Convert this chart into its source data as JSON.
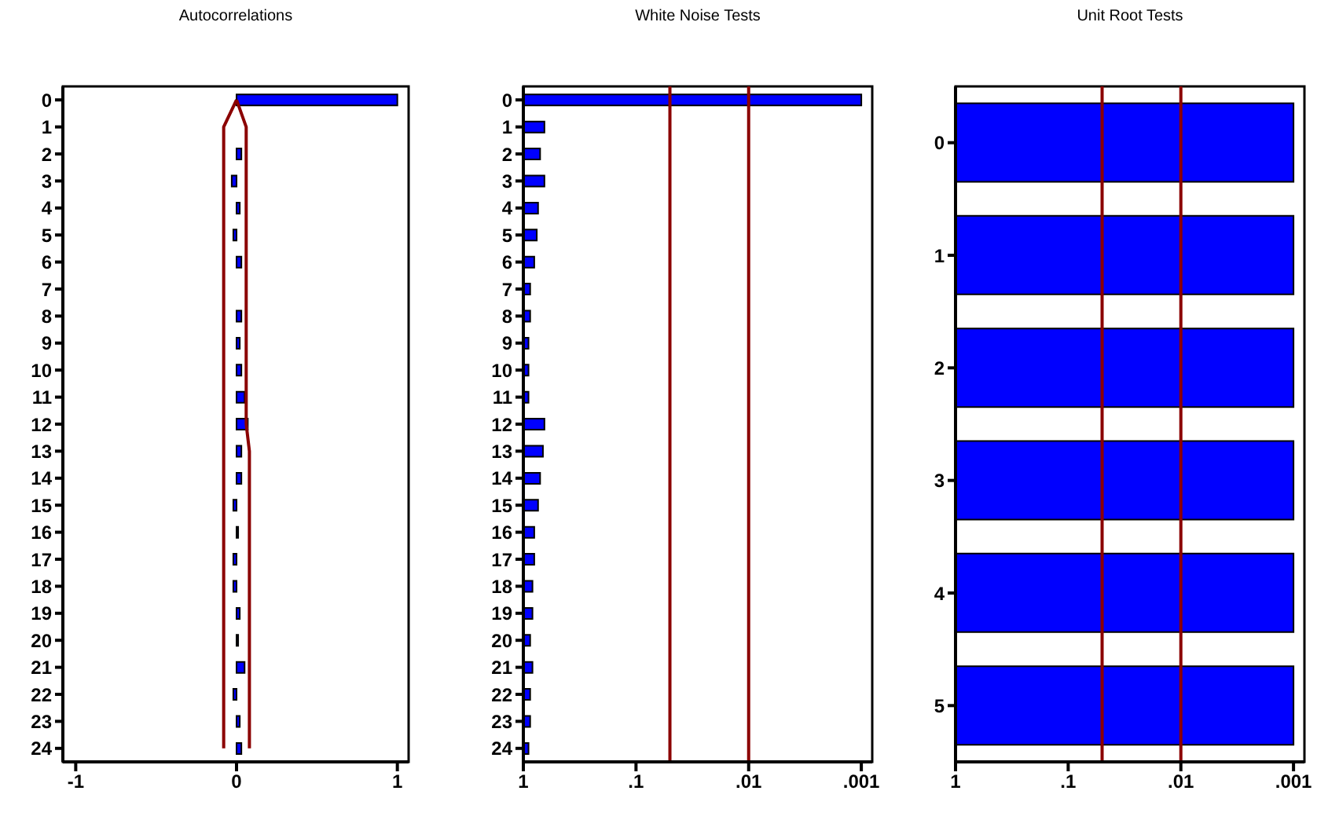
{
  "chart_data": [
    {
      "type": "bar",
      "title": "Autocorrelations",
      "orientation": "horizontal",
      "categories": [
        "0",
        "1",
        "2",
        "3",
        "4",
        "5",
        "6",
        "7",
        "8",
        "9",
        "10",
        "11",
        "12",
        "13",
        "14",
        "15",
        "16",
        "17",
        "18",
        "19",
        "20",
        "21",
        "22",
        "23",
        "24"
      ],
      "series": [
        {
          "color": "#0000ff",
          "values": [
            1,
            0,
            0.03,
            -0.03,
            0.02,
            -0.02,
            0.03,
            0,
            0.03,
            0.02,
            0.03,
            0.05,
            0.07,
            0.03,
            0.03,
            -0.02,
            0.01,
            -0.02,
            -0.02,
            0.02,
            0.01,
            0.05,
            -0.02,
            0.02,
            0.03
          ]
        },
        {
          "type": "line",
          "color": "#8b0000",
          "values": [
            0,
            -0.08,
            -0.08,
            -0.08,
            -0.08,
            -0.08,
            -0.08,
            -0.08,
            -0.08,
            -0.08,
            -0.08,
            -0.08,
            -0.08,
            -0.08,
            -0.08,
            -0.08,
            -0.08,
            -0.08,
            -0.08,
            -0.08,
            -0.08,
            -0.08,
            -0.08,
            -0.08,
            -0.08
          ]
        },
        {
          "type": "line",
          "color": "#8b0000",
          "values": [
            0,
            0.06,
            0.06,
            0.06,
            0.06,
            0.06,
            0.06,
            0.06,
            0.06,
            0.06,
            0.06,
            0.06,
            0.06,
            0.08,
            0.08,
            0.08,
            0.08,
            0.08,
            0.08,
            0.08,
            0.08,
            0.08,
            0.08,
            0.08,
            0.08
          ]
        }
      ],
      "xlim": [
        -1.08,
        1.07
      ],
      "xticks": [
        -1,
        0,
        1
      ],
      "grid": false,
      "legend": false
    },
    {
      "type": "bar",
      "title": "White Noise Tests",
      "orientation": "horizontal",
      "log": "x",
      "categories": [
        "0",
        "1",
        "2",
        "3",
        "4",
        "5",
        "6",
        "7",
        "8",
        "9",
        "10",
        "11",
        "12",
        "13",
        "14",
        "15",
        "16",
        "17",
        "18",
        "19",
        "20",
        "21",
        "22",
        "23",
        "24"
      ],
      "color": "#0000ff",
      "base": [
        1,
        1,
        1,
        1,
        1,
        1,
        1,
        1,
        1,
        1,
        1,
        1,
        1,
        1,
        1,
        1,
        1,
        1,
        1,
        1,
        1,
        1,
        1,
        1,
        1
      ],
      "values": [
        -0.999,
        -0.35,
        -0.29,
        -0.35,
        -0.26,
        -0.24,
        -0.2,
        -0.13,
        -0.13,
        -0.1,
        -0.1,
        -0.1,
        -0.35,
        -0.33,
        -0.29,
        -0.26,
        -0.2,
        -0.2,
        -0.17,
        -0.17,
        -0.13,
        -0.17,
        -0.13,
        -0.13,
        -0.1
      ],
      "xlim": [
        1,
        0.0008
      ],
      "xticks": [
        1,
        {
          "value": 0.1,
          "label": ".1"
        },
        {
          "value": 0.01,
          "label": ".01"
        },
        {
          "value": 0.001,
          "label": ".001"
        }
      ],
      "ref_lines": [
        {
          "axis": "x",
          "value": 0.05,
          "color": "#8b0000"
        },
        {
          "axis": "x",
          "value": 0.01,
          "color": "#8b0000"
        }
      ],
      "grid": false,
      "legend": false
    },
    {
      "type": "bar",
      "title": "Unit Root Tests",
      "orientation": "horizontal",
      "log": "x",
      "categories": [
        "0",
        "1",
        "2",
        "3",
        "4",
        "5"
      ],
      "color": "#0000ff",
      "base": [
        1,
        1,
        1,
        1,
        1,
        1
      ],
      "values": [
        -0.999,
        -0.999,
        -0.999,
        -0.999,
        -0.999,
        -0.999
      ],
      "xlim": [
        1,
        0.0008
      ],
      "xticks": [
        1,
        {
          "value": 0.1,
          "label": ".1"
        },
        {
          "value": 0.01,
          "label": ".01"
        },
        {
          "value": 0.001,
          "label": ".001"
        }
      ],
      "ref_lines": [
        {
          "axis": "x",
          "value": 0.05,
          "color": "#8b0000"
        },
        {
          "axis": "x",
          "value": 0.01,
          "color": "#8b0000"
        }
      ],
      "grid": false,
      "legend": false
    }
  ]
}
